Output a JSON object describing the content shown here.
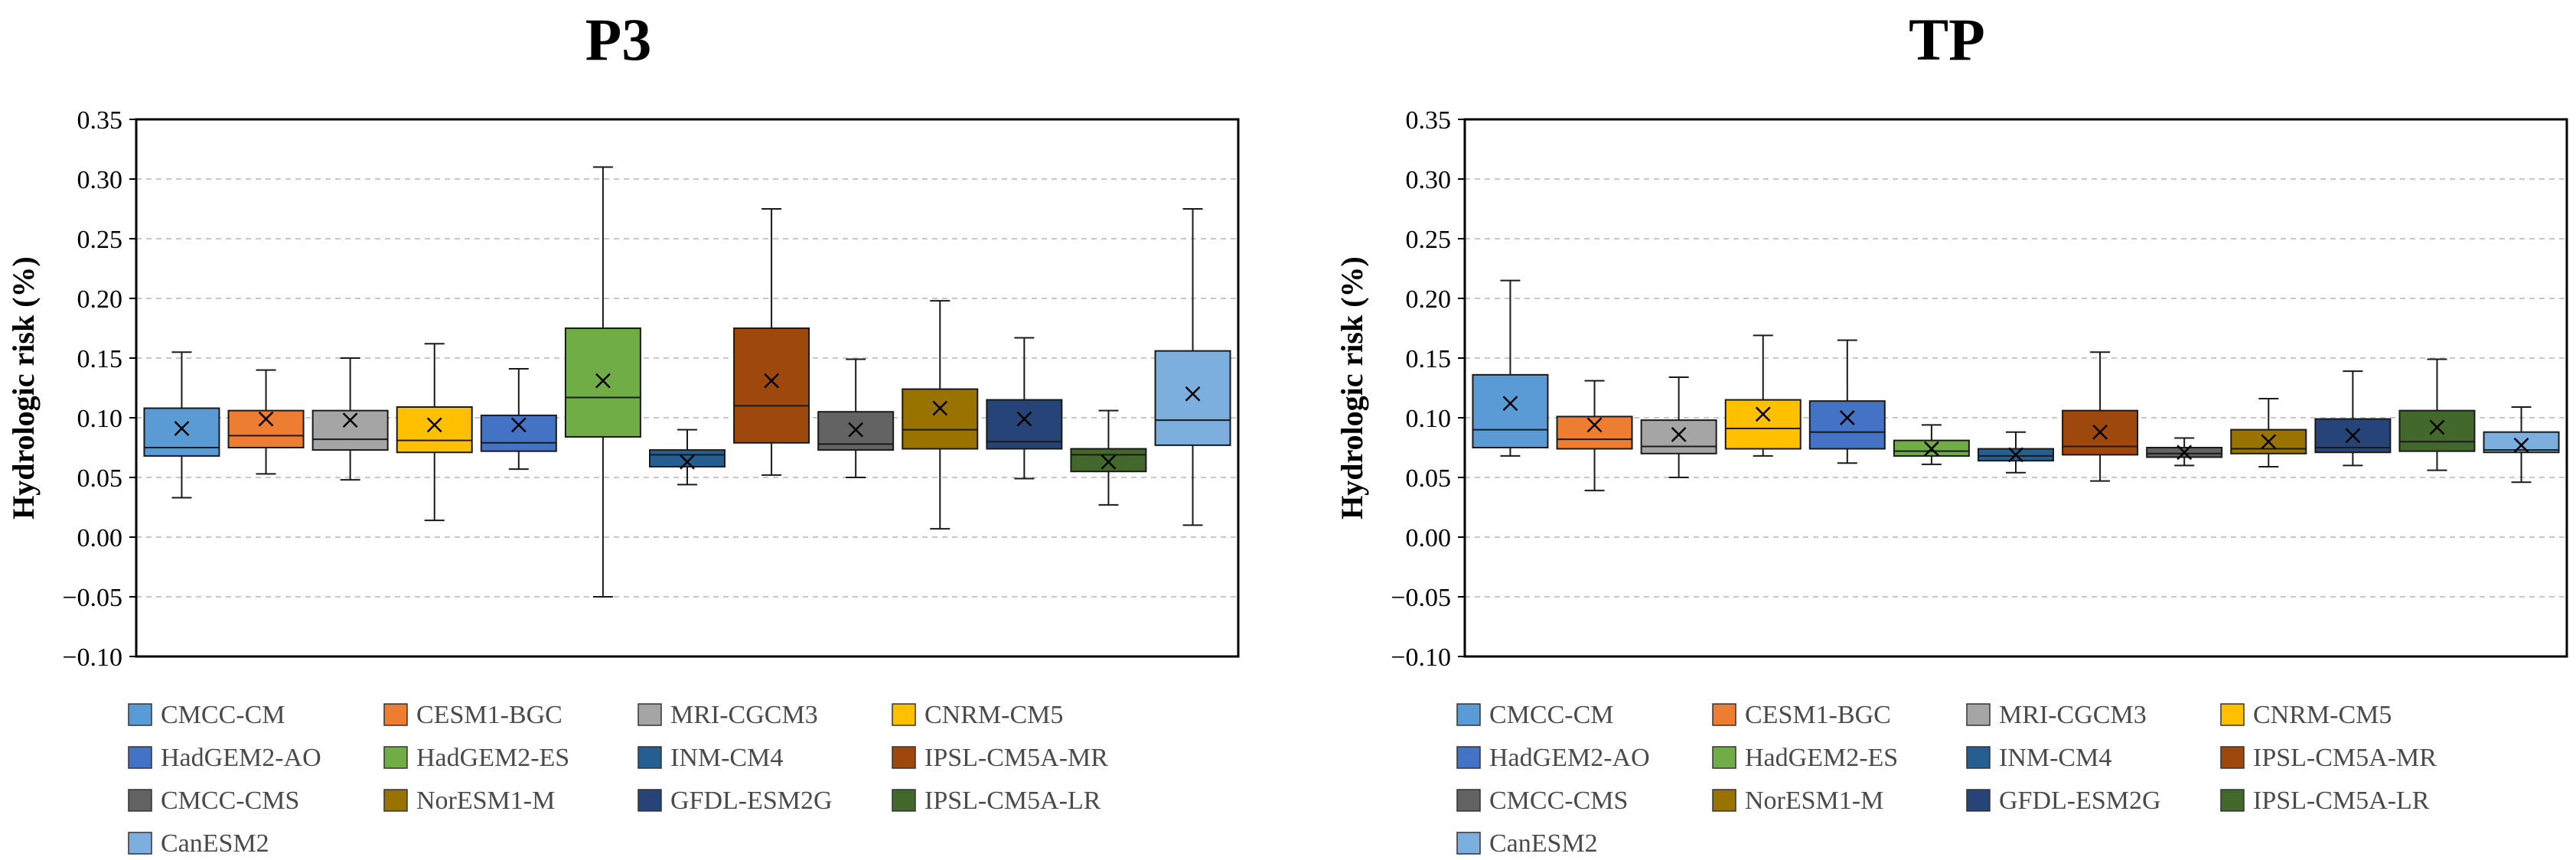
{
  "chart_data": [
    {
      "type": "box",
      "title": "P3",
      "ylabel": "Hydrologic risk (%)",
      "ylim": [
        -0.1,
        0.35
      ],
      "yticks": [
        "−0.10",
        "−0.05",
        "0.00",
        "0.05",
        "0.10",
        "0.15",
        "0.20",
        "0.25",
        "0.30",
        "0.35"
      ],
      "grid": "horizontal dashed",
      "legend_position": "bottom",
      "boxes": [
        {
          "name": "CMCC-CM",
          "color": "#5b9bd5",
          "min": 0.033,
          "q1": 0.068,
          "median": 0.075,
          "q3": 0.108,
          "max": 0.155,
          "mean": 0.091
        },
        {
          "name": "CESM1-BGC",
          "color": "#ed7d31",
          "min": 0.053,
          "q1": 0.075,
          "median": 0.085,
          "q3": 0.106,
          "max": 0.14,
          "mean": 0.099
        },
        {
          "name": "MRI-CGCM3",
          "color": "#a5a5a5",
          "min": 0.048,
          "q1": 0.073,
          "median": 0.082,
          "q3": 0.106,
          "max": 0.15,
          "mean": 0.098
        },
        {
          "name": "CNRM-CM5",
          "color": "#ffc000",
          "min": 0.014,
          "q1": 0.071,
          "median": 0.081,
          "q3": 0.109,
          "max": 0.162,
          "mean": 0.094
        },
        {
          "name": "HadGEM2-AO",
          "color": "#4472c4",
          "min": 0.057,
          "q1": 0.072,
          "median": 0.079,
          "q3": 0.102,
          "max": 0.141,
          "mean": 0.094
        },
        {
          "name": "HadGEM2-ES",
          "color": "#70ad47",
          "min": -0.05,
          "q1": 0.084,
          "median": 0.117,
          "q3": 0.175,
          "max": 0.31,
          "mean": 0.131
        },
        {
          "name": "INM-CM4",
          "color": "#255e91",
          "min": 0.044,
          "q1": 0.059,
          "median": 0.069,
          "q3": 0.073,
          "max": 0.09,
          "mean": 0.063
        },
        {
          "name": "IPSL-CM5A-MR",
          "color": "#9e480e",
          "min": 0.052,
          "q1": 0.079,
          "median": 0.11,
          "q3": 0.175,
          "max": 0.275,
          "mean": 0.131
        },
        {
          "name": "CMCC-CMS",
          "color": "#636363",
          "min": 0.05,
          "q1": 0.073,
          "median": 0.078,
          "q3": 0.105,
          "max": 0.149,
          "mean": 0.09
        },
        {
          "name": "NorESM1-M",
          "color": "#997300",
          "min": 0.007,
          "q1": 0.074,
          "median": 0.09,
          "q3": 0.124,
          "max": 0.198,
          "mean": 0.108
        },
        {
          "name": "GFDL-ESM2G",
          "color": "#264478",
          "min": 0.049,
          "q1": 0.074,
          "median": 0.08,
          "q3": 0.115,
          "max": 0.167,
          "mean": 0.099
        },
        {
          "name": "IPSL-CM5A-LR",
          "color": "#43682b",
          "min": 0.027,
          "q1": 0.055,
          "median": 0.069,
          "q3": 0.074,
          "max": 0.106,
          "mean": 0.063
        },
        {
          "name": "CanESM2",
          "color": "#7cafdd",
          "min": 0.01,
          "q1": 0.077,
          "median": 0.098,
          "q3": 0.156,
          "max": 0.275,
          "mean": 0.12
        }
      ]
    },
    {
      "type": "box",
      "title": "TP",
      "ylabel": "Hydrologic risk (%)",
      "ylim": [
        -0.1,
        0.35
      ],
      "yticks": [
        "−0.10",
        "−0.05",
        "0.00",
        "0.05",
        "0.10",
        "0.15",
        "0.20",
        "0.25",
        "0.30",
        "0.35"
      ],
      "grid": "horizontal dashed",
      "legend_position": "bottom",
      "boxes": [
        {
          "name": "CMCC-CM",
          "color": "#5b9bd5",
          "min": 0.068,
          "q1": 0.075,
          "median": 0.09,
          "q3": 0.136,
          "max": 0.215,
          "mean": 0.112
        },
        {
          "name": "CESM1-BGC",
          "color": "#ed7d31",
          "min": 0.039,
          "q1": 0.074,
          "median": 0.082,
          "q3": 0.101,
          "max": 0.131,
          "mean": 0.094
        },
        {
          "name": "MRI-CGCM3",
          "color": "#a5a5a5",
          "min": 0.05,
          "q1": 0.07,
          "median": 0.076,
          "q3": 0.098,
          "max": 0.134,
          "mean": 0.086
        },
        {
          "name": "CNRM-CM5",
          "color": "#ffc000",
          "min": 0.068,
          "q1": 0.074,
          "median": 0.091,
          "q3": 0.115,
          "max": 0.169,
          "mean": 0.103
        },
        {
          "name": "HadGEM2-AO",
          "color": "#4472c4",
          "min": 0.062,
          "q1": 0.074,
          "median": 0.088,
          "q3": 0.114,
          "max": 0.165,
          "mean": 0.1
        },
        {
          "name": "HadGEM2-ES",
          "color": "#70ad47",
          "min": 0.061,
          "q1": 0.068,
          "median": 0.072,
          "q3": 0.081,
          "max": 0.094,
          "mean": 0.074
        },
        {
          "name": "INM-CM4",
          "color": "#255e91",
          "min": 0.054,
          "q1": 0.064,
          "median": 0.068,
          "q3": 0.074,
          "max": 0.088,
          "mean": 0.069
        },
        {
          "name": "IPSL-CM5A-MR",
          "color": "#9e480e",
          "min": 0.047,
          "q1": 0.069,
          "median": 0.076,
          "q3": 0.106,
          "max": 0.155,
          "mean": 0.088
        },
        {
          "name": "CMCC-CMS",
          "color": "#636363",
          "min": 0.06,
          "q1": 0.067,
          "median": 0.07,
          "q3": 0.075,
          "max": 0.083,
          "mean": 0.071
        },
        {
          "name": "NorESM1-M",
          "color": "#997300",
          "min": 0.059,
          "q1": 0.07,
          "median": 0.074,
          "q3": 0.09,
          "max": 0.116,
          "mean": 0.08
        },
        {
          "name": "GFDL-ESM2G",
          "color": "#264478",
          "min": 0.06,
          "q1": 0.071,
          "median": 0.075,
          "q3": 0.099,
          "max": 0.139,
          "mean": 0.085
        },
        {
          "name": "IPSL-CM5A-LR",
          "color": "#43682b",
          "min": 0.056,
          "q1": 0.072,
          "median": 0.08,
          "q3": 0.106,
          "max": 0.149,
          "mean": 0.092
        },
        {
          "name": "CanESM2",
          "color": "#7cafdd",
          "min": 0.046,
          "q1": 0.071,
          "median": 0.073,
          "q3": 0.088,
          "max": 0.109,
          "mean": 0.077
        }
      ]
    }
  ]
}
